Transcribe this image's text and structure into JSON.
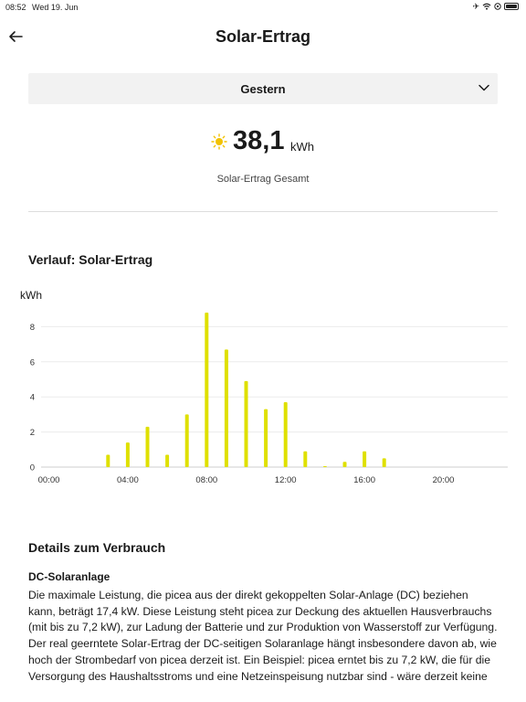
{
  "status_bar": {
    "time": "08:52",
    "date": "Wed 19. Jun"
  },
  "header": {
    "title": "Solar-Ertrag",
    "back_icon": "arrow-left-icon"
  },
  "period": {
    "selected": "Gestern"
  },
  "total": {
    "value": "38,1",
    "unit": "kWh",
    "caption": "Solar-Ertrag Gesamt",
    "icon": "sun-icon",
    "accent": "#f2c200"
  },
  "chart_section": {
    "title": "Verlauf: Solar-Ertrag"
  },
  "chart_data": {
    "type": "bar",
    "ylabel": "kWh",
    "ylim": [
      0,
      9
    ],
    "yticks": [
      "0",
      "2",
      "4",
      "6",
      "8"
    ],
    "xticks": [
      "00:00",
      "04:00",
      "08:00",
      "12:00",
      "16:00",
      "20:00"
    ],
    "x_hours": [
      3,
      4,
      5,
      6,
      7,
      8,
      9,
      10,
      11,
      12,
      13,
      14,
      15,
      16,
      17
    ],
    "values": [
      0.7,
      1.4,
      2.3,
      0.7,
      3.0,
      8.8,
      6.7,
      4.9,
      3.3,
      3.7,
      0.9,
      0.05,
      0.3,
      0.9,
      0.5
    ],
    "bar_color": "#dfe000",
    "grid": true
  },
  "details": {
    "title": "Details zum Verbrauch",
    "subtitle": "DC-Solaranlage",
    "body": "Die maximale Leistung, die picea aus der direkt gekoppelten Solar-Anlage (DC) beziehen kann, beträgt 17,4 kW. Diese Leistung steht picea zur Deckung des aktuellen Hausverbrauchs (mit bis zu 7,2 kW), zur Ladung der Batterie und zur Produktion von Wasserstoff zur Verfügung. Der real geerntete Solar-Ertrag der DC-seitigen Solaranlage hängt insbesondere davon ab, wie hoch der Strombedarf von picea derzeit ist. Ein Beispiel: picea erntet bis zu 7,2 kW, die für die Versorgung des Haushaltsstroms und eine Netzeinspeisung nutzbar sind - wäre derzeit keine"
  }
}
